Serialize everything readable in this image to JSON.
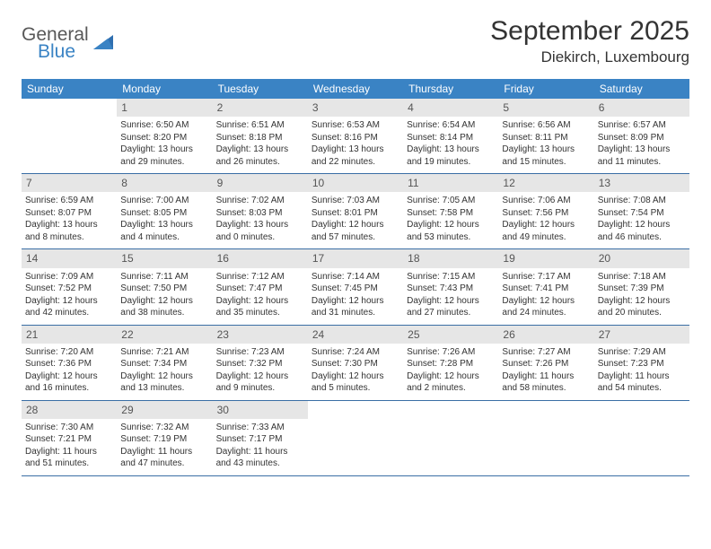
{
  "logo": {
    "general": "General",
    "blue": "Blue"
  },
  "title": "September 2025",
  "location": "Diekirch, Luxembourg",
  "header_bg": "#3a83c4",
  "header_fg": "#ffffff",
  "daynum_bg": "#e6e6e6",
  "rule_color": "#3a6ea5",
  "weekdays": [
    "Sunday",
    "Monday",
    "Tuesday",
    "Wednesday",
    "Thursday",
    "Friday",
    "Saturday"
  ],
  "weeks": [
    [
      {
        "num": "",
        "sunrise": "",
        "sunset": "",
        "daylight": ""
      },
      {
        "num": "1",
        "sunrise": "Sunrise: 6:50 AM",
        "sunset": "Sunset: 8:20 PM",
        "daylight": "Daylight: 13 hours and 29 minutes."
      },
      {
        "num": "2",
        "sunrise": "Sunrise: 6:51 AM",
        "sunset": "Sunset: 8:18 PM",
        "daylight": "Daylight: 13 hours and 26 minutes."
      },
      {
        "num": "3",
        "sunrise": "Sunrise: 6:53 AM",
        "sunset": "Sunset: 8:16 PM",
        "daylight": "Daylight: 13 hours and 22 minutes."
      },
      {
        "num": "4",
        "sunrise": "Sunrise: 6:54 AM",
        "sunset": "Sunset: 8:14 PM",
        "daylight": "Daylight: 13 hours and 19 minutes."
      },
      {
        "num": "5",
        "sunrise": "Sunrise: 6:56 AM",
        "sunset": "Sunset: 8:11 PM",
        "daylight": "Daylight: 13 hours and 15 minutes."
      },
      {
        "num": "6",
        "sunrise": "Sunrise: 6:57 AM",
        "sunset": "Sunset: 8:09 PM",
        "daylight": "Daylight: 13 hours and 11 minutes."
      }
    ],
    [
      {
        "num": "7",
        "sunrise": "Sunrise: 6:59 AM",
        "sunset": "Sunset: 8:07 PM",
        "daylight": "Daylight: 13 hours and 8 minutes."
      },
      {
        "num": "8",
        "sunrise": "Sunrise: 7:00 AM",
        "sunset": "Sunset: 8:05 PM",
        "daylight": "Daylight: 13 hours and 4 minutes."
      },
      {
        "num": "9",
        "sunrise": "Sunrise: 7:02 AM",
        "sunset": "Sunset: 8:03 PM",
        "daylight": "Daylight: 13 hours and 0 minutes."
      },
      {
        "num": "10",
        "sunrise": "Sunrise: 7:03 AM",
        "sunset": "Sunset: 8:01 PM",
        "daylight": "Daylight: 12 hours and 57 minutes."
      },
      {
        "num": "11",
        "sunrise": "Sunrise: 7:05 AM",
        "sunset": "Sunset: 7:58 PM",
        "daylight": "Daylight: 12 hours and 53 minutes."
      },
      {
        "num": "12",
        "sunrise": "Sunrise: 7:06 AM",
        "sunset": "Sunset: 7:56 PM",
        "daylight": "Daylight: 12 hours and 49 minutes."
      },
      {
        "num": "13",
        "sunrise": "Sunrise: 7:08 AM",
        "sunset": "Sunset: 7:54 PM",
        "daylight": "Daylight: 12 hours and 46 minutes."
      }
    ],
    [
      {
        "num": "14",
        "sunrise": "Sunrise: 7:09 AM",
        "sunset": "Sunset: 7:52 PM",
        "daylight": "Daylight: 12 hours and 42 minutes."
      },
      {
        "num": "15",
        "sunrise": "Sunrise: 7:11 AM",
        "sunset": "Sunset: 7:50 PM",
        "daylight": "Daylight: 12 hours and 38 minutes."
      },
      {
        "num": "16",
        "sunrise": "Sunrise: 7:12 AM",
        "sunset": "Sunset: 7:47 PM",
        "daylight": "Daylight: 12 hours and 35 minutes."
      },
      {
        "num": "17",
        "sunrise": "Sunrise: 7:14 AM",
        "sunset": "Sunset: 7:45 PM",
        "daylight": "Daylight: 12 hours and 31 minutes."
      },
      {
        "num": "18",
        "sunrise": "Sunrise: 7:15 AM",
        "sunset": "Sunset: 7:43 PM",
        "daylight": "Daylight: 12 hours and 27 minutes."
      },
      {
        "num": "19",
        "sunrise": "Sunrise: 7:17 AM",
        "sunset": "Sunset: 7:41 PM",
        "daylight": "Daylight: 12 hours and 24 minutes."
      },
      {
        "num": "20",
        "sunrise": "Sunrise: 7:18 AM",
        "sunset": "Sunset: 7:39 PM",
        "daylight": "Daylight: 12 hours and 20 minutes."
      }
    ],
    [
      {
        "num": "21",
        "sunrise": "Sunrise: 7:20 AM",
        "sunset": "Sunset: 7:36 PM",
        "daylight": "Daylight: 12 hours and 16 minutes."
      },
      {
        "num": "22",
        "sunrise": "Sunrise: 7:21 AM",
        "sunset": "Sunset: 7:34 PM",
        "daylight": "Daylight: 12 hours and 13 minutes."
      },
      {
        "num": "23",
        "sunrise": "Sunrise: 7:23 AM",
        "sunset": "Sunset: 7:32 PM",
        "daylight": "Daylight: 12 hours and 9 minutes."
      },
      {
        "num": "24",
        "sunrise": "Sunrise: 7:24 AM",
        "sunset": "Sunset: 7:30 PM",
        "daylight": "Daylight: 12 hours and 5 minutes."
      },
      {
        "num": "25",
        "sunrise": "Sunrise: 7:26 AM",
        "sunset": "Sunset: 7:28 PM",
        "daylight": "Daylight: 12 hours and 2 minutes."
      },
      {
        "num": "26",
        "sunrise": "Sunrise: 7:27 AM",
        "sunset": "Sunset: 7:26 PM",
        "daylight": "Daylight: 11 hours and 58 minutes."
      },
      {
        "num": "27",
        "sunrise": "Sunrise: 7:29 AM",
        "sunset": "Sunset: 7:23 PM",
        "daylight": "Daylight: 11 hours and 54 minutes."
      }
    ],
    [
      {
        "num": "28",
        "sunrise": "Sunrise: 7:30 AM",
        "sunset": "Sunset: 7:21 PM",
        "daylight": "Daylight: 11 hours and 51 minutes."
      },
      {
        "num": "29",
        "sunrise": "Sunrise: 7:32 AM",
        "sunset": "Sunset: 7:19 PM",
        "daylight": "Daylight: 11 hours and 47 minutes."
      },
      {
        "num": "30",
        "sunrise": "Sunrise: 7:33 AM",
        "sunset": "Sunset: 7:17 PM",
        "daylight": "Daylight: 11 hours and 43 minutes."
      },
      {
        "num": "",
        "sunrise": "",
        "sunset": "",
        "daylight": ""
      },
      {
        "num": "",
        "sunrise": "",
        "sunset": "",
        "daylight": ""
      },
      {
        "num": "",
        "sunrise": "",
        "sunset": "",
        "daylight": ""
      },
      {
        "num": "",
        "sunrise": "",
        "sunset": "",
        "daylight": ""
      }
    ]
  ]
}
